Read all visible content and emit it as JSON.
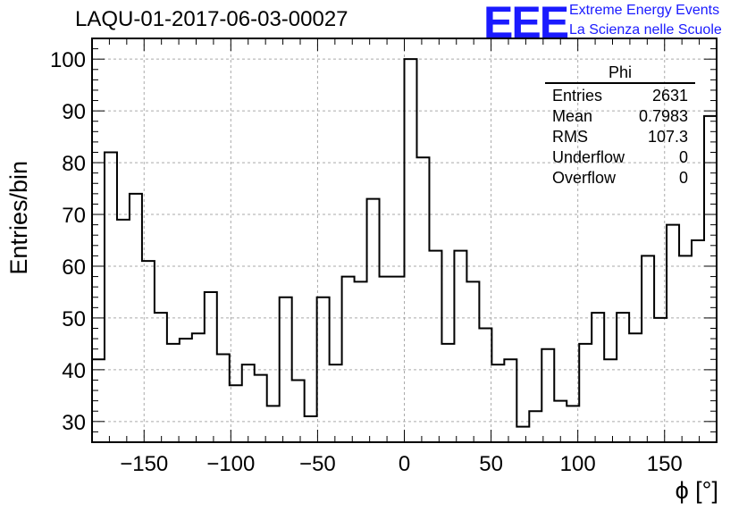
{
  "header": {
    "title": "LAQU-01-2017-06-03-00027",
    "logo_text": "EEE",
    "logo_line1": "Extreme Energy Events",
    "logo_line2": "La Scienza nelle Scuole",
    "logo_color": "#1a1aff"
  },
  "stats_box": {
    "title": "Phi",
    "rows": [
      {
        "label": "Entries",
        "value": "2631"
      },
      {
        "label": "Mean",
        "value": "0.7983"
      },
      {
        "label": "RMS",
        "value": "107.3"
      },
      {
        "label": "Underflow",
        "value": "0"
      },
      {
        "label": "Overflow",
        "value": "0"
      }
    ]
  },
  "chart_data": {
    "type": "histogram",
    "title": "LAQU-01-2017-06-03-00027",
    "xlabel": "ϕ [°]",
    "ylabel": "Entries/bin",
    "xlim": [
      -180,
      180
    ],
    "ylim": [
      26,
      104
    ],
    "grid": true,
    "bin_width": 7.2,
    "x_ticks": [
      -150,
      -100,
      -50,
      0,
      50,
      100,
      150
    ],
    "x_tick_labels": [
      "−150",
      "−100",
      "−50",
      "0",
      "50",
      "100",
      "150"
    ],
    "y_ticks": [
      30,
      40,
      50,
      60,
      70,
      80,
      90,
      100
    ],
    "y_tick_labels": [
      "30",
      "40",
      "50",
      "60",
      "70",
      "80",
      "90",
      "100"
    ],
    "values": [
      42,
      82,
      69,
      74,
      61,
      51,
      45,
      46,
      47,
      55,
      43,
      37,
      41,
      39,
      33,
      54,
      38,
      31,
      54,
      41,
      58,
      57,
      73,
      58,
      58,
      100,
      81,
      63,
      45,
      63,
      57,
      48,
      41,
      42,
      29,
      32,
      44,
      34,
      33,
      45,
      51,
      42,
      51,
      47,
      62,
      50,
      68,
      62,
      65,
      89
    ]
  }
}
